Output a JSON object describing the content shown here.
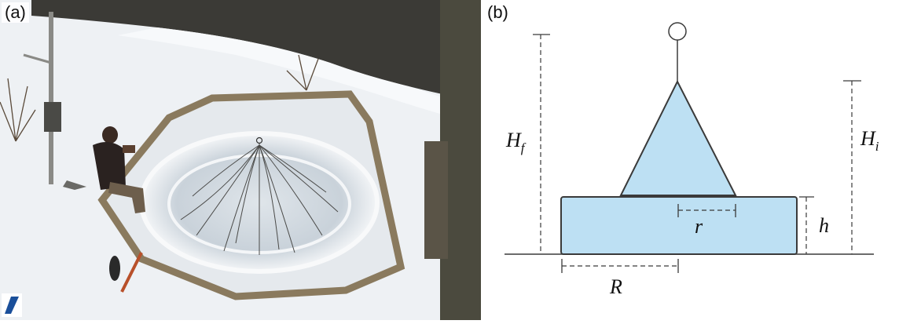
{
  "panels": {
    "a": {
      "label": "(a)"
    },
    "b": {
      "label": "(b)"
    }
  },
  "diagram": {
    "labels": {
      "Hf_main": "H",
      "Hf_sub": "f",
      "Hi_main": "H",
      "Hi_sub": "i",
      "h": "h",
      "r": "r",
      "R": "R"
    },
    "colors": {
      "fill": "#bde0f3",
      "stroke": "#3a3a3a"
    }
  }
}
